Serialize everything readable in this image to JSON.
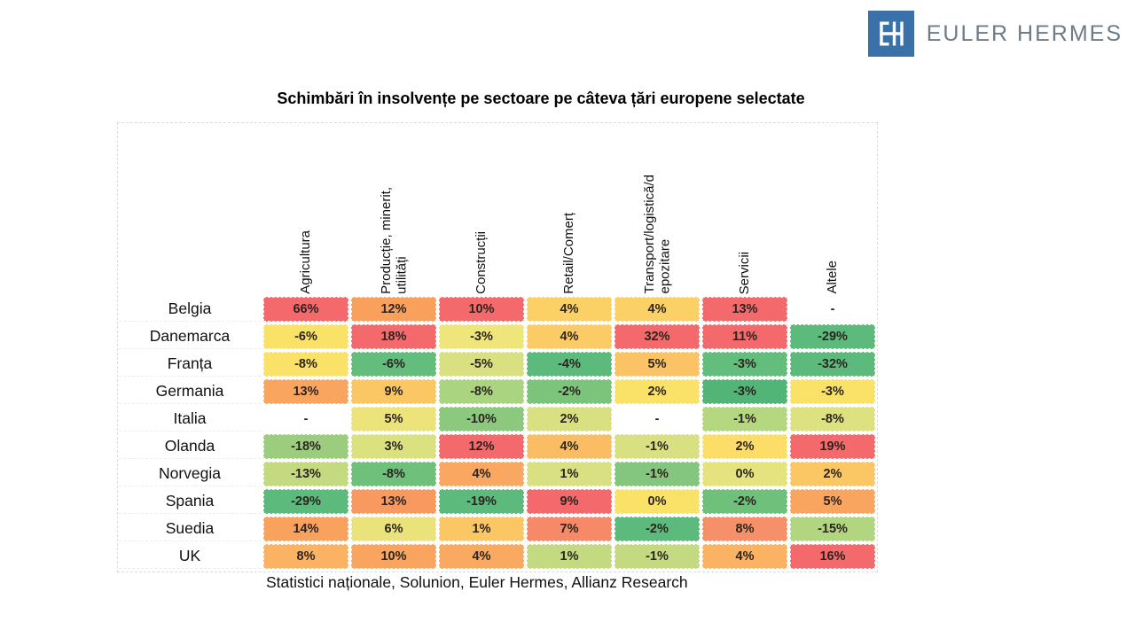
{
  "logo": {
    "monogram": "EH",
    "brand": "EULER HERMES",
    "square_color": "#3b71a9",
    "text_color": "#6e7b88"
  },
  "title": "Schimbări în insolvențe pe sectoare pe câteva țări europene selectate",
  "source": "Statistici naționale, Solunion, Euler Hermes, Allianz Research",
  "chart_data": {
    "type": "heatmap",
    "title": "Schimbări în insolvențe pe sectoare pe câteva țări europene selectate",
    "legend_position": "none",
    "grid": "dashed-light",
    "columns": [
      "Agricultura",
      "Producție, minerit,\nutilități",
      "Construcții",
      "Retail/Comerț",
      "Transport/logistică/d\nepozitare",
      "Servicii",
      "Altele"
    ],
    "rows": [
      "Belgia",
      "Danemarca",
      "Franța",
      "Germania",
      "Italia",
      "Olanda",
      "Norvegia",
      "Spania",
      "Suedia",
      "UK"
    ],
    "values": [
      [
        "66%",
        "12%",
        "10%",
        "4%",
        "4%",
        "13%",
        "-"
      ],
      [
        "-6%",
        "18%",
        "-3%",
        "4%",
        "32%",
        "11%",
        "-29%"
      ],
      [
        "-8%",
        "-6%",
        "-5%",
        "-4%",
        "5%",
        "-3%",
        "-32%"
      ],
      [
        "13%",
        "9%",
        "-8%",
        "-2%",
        "2%",
        "-3%",
        "-3%"
      ],
      [
        "-",
        "5%",
        "-10%",
        "2%",
        "-",
        "-1%",
        "-8%"
      ],
      [
        "-18%",
        "3%",
        "12%",
        "4%",
        "-1%",
        "2%",
        "19%"
      ],
      [
        "-13%",
        "-8%",
        "4%",
        "1%",
        "-1%",
        "0%",
        "2%"
      ],
      [
        "-29%",
        "13%",
        "-19%",
        "9%",
        "0%",
        "-2%",
        "5%"
      ],
      [
        "14%",
        "6%",
        "1%",
        "7%",
        "-2%",
        "8%",
        "-15%"
      ],
      [
        "8%",
        "10%",
        "4%",
        "1%",
        "-1%",
        "4%",
        "16%"
      ]
    ],
    "cell_colors": [
      [
        "#f4696b",
        "#f9a05d",
        "#f4696b",
        "#fbd166",
        "#fbd166",
        "#f4696b",
        "#ffffff"
      ],
      [
        "#f9e267",
        "#f4696b",
        "#eee57b",
        "#fbcb65",
        "#f4696b",
        "#f4696b",
        "#5dba7d"
      ],
      [
        "#f9e267",
        "#63bd7d",
        "#d9e081",
        "#5dba7d",
        "#fbc365",
        "#63bd7d",
        "#5dba7d"
      ],
      [
        "#f9a55f",
        "#fbc765",
        "#aad47f",
        "#7cc47c",
        "#f9e267",
        "#52b477",
        "#f9e267"
      ],
      [
        "#ffffff",
        "#ece37a",
        "#8cc97e",
        "#d9e081",
        "#ffffff",
        "#b5d77f",
        "#dde17f"
      ],
      [
        "#9ccd7e",
        "#dce17f",
        "#f4696b",
        "#fbbd63",
        "#d9e081",
        "#fbdd67",
        "#f4696b"
      ],
      [
        "#c3da80",
        "#6ec07b",
        "#f9a761",
        "#d9e081",
        "#84c67d",
        "#e4e37e",
        "#fbc765"
      ],
      [
        "#5dba7d",
        "#f89a60",
        "#5dba7d",
        "#f4696b",
        "#f9e267",
        "#6fc07b",
        "#f9a55f"
      ],
      [
        "#f9a25e",
        "#eae37b",
        "#fbc765",
        "#f68a68",
        "#5dba7d",
        "#f6906a",
        "#b2d57f"
      ],
      [
        "#fbb263",
        "#f9a55f",
        "#faa961",
        "#c4da80",
        "#c4da80",
        "#fbb263",
        "#f4696b"
      ]
    ],
    "palette": {
      "strong_increase": "#f4696b",
      "increase": "#f9a55f",
      "mild_increase": "#fbc765",
      "neutral": "#f9e267",
      "mild_decrease": "#d9e081",
      "decrease": "#aad47f",
      "strong_decrease": "#5dba7d",
      "no_data": "#ffffff"
    }
  }
}
